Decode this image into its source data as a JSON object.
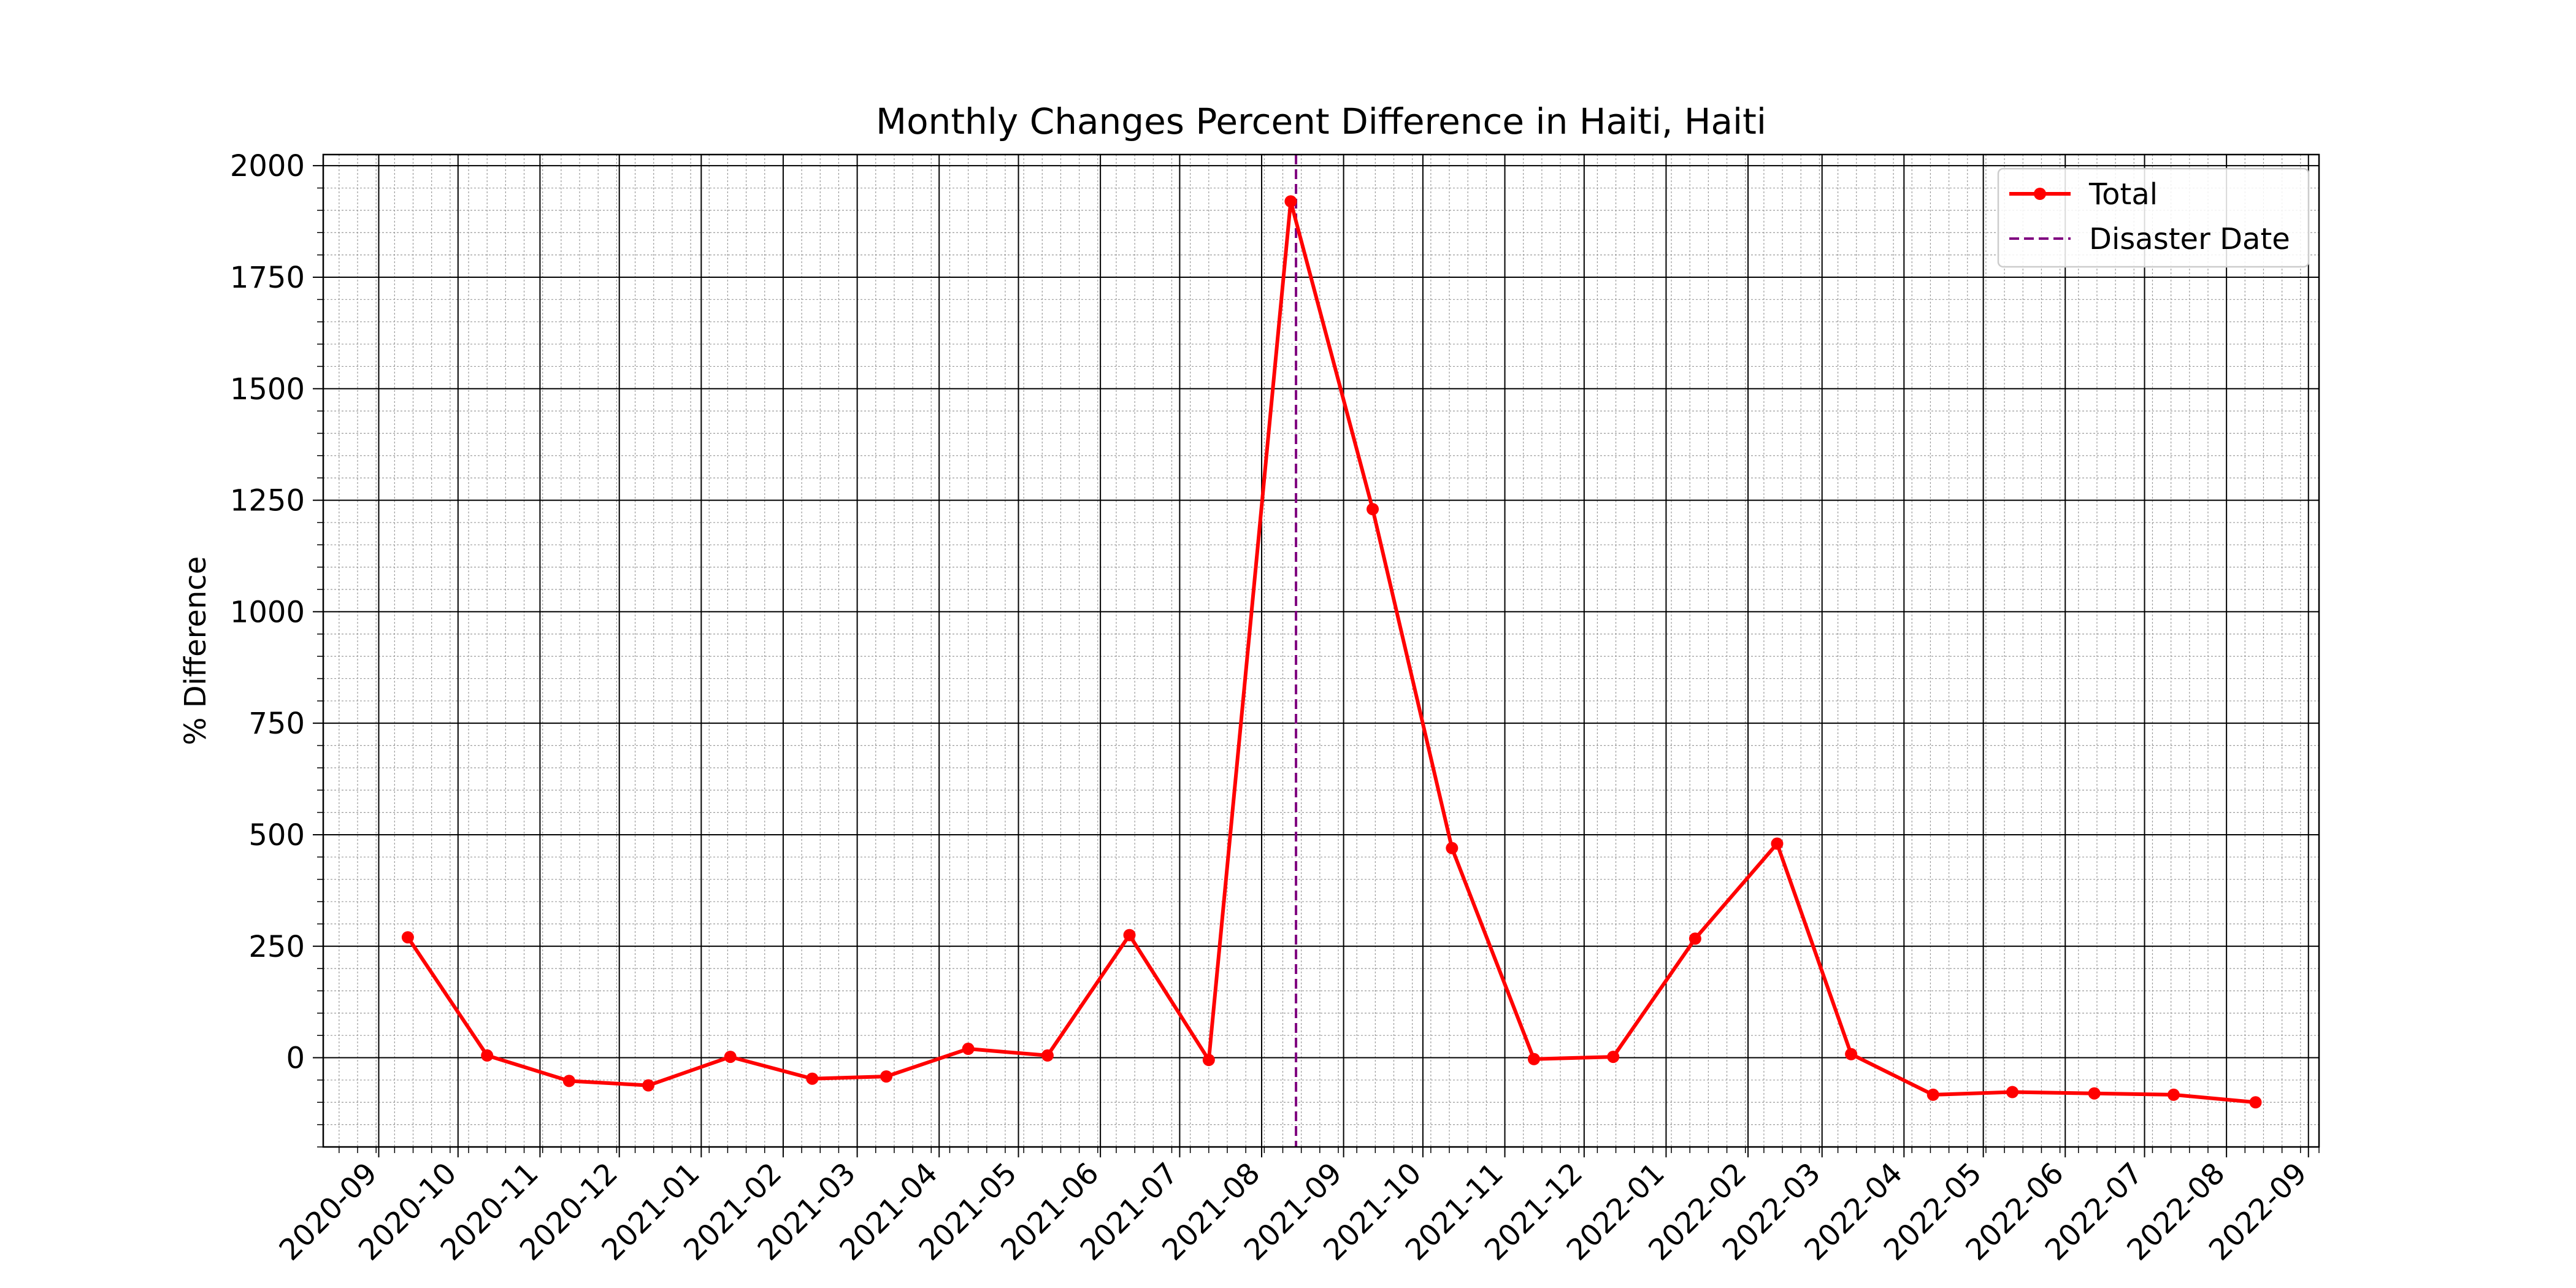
{
  "chart_data": {
    "type": "line",
    "title": "Monthly Changes Percent Difference in Haiti, Haiti",
    "xlabel": "",
    "ylabel": "% Difference",
    "x_ticks": [
      "2020-09",
      "2020-10",
      "2020-11",
      "2020-12",
      "2021-01",
      "2021-02",
      "2021-03",
      "2021-04",
      "2021-05",
      "2021-06",
      "2021-07",
      "2021-08",
      "2021-09",
      "2021-10",
      "2021-11",
      "2021-12",
      "2022-01",
      "2022-02",
      "2022-03",
      "2022-04",
      "2022-05",
      "2022-06",
      "2022-07",
      "2022-08",
      "2022-09"
    ],
    "y_ticks": [
      0,
      250,
      500,
      750,
      1000,
      1250,
      1500,
      1750,
      2000
    ],
    "xlim": [
      "2020-08-11",
      "2022-09-05"
    ],
    "ylim": [
      -200,
      2025
    ],
    "grid": true,
    "legend_position": "top-right",
    "series": [
      {
        "name": "Total",
        "color": "#ff0000",
        "marker": "circle",
        "x": [
          "2020-09-12",
          "2020-10-12",
          "2020-11-12",
          "2020-12-12",
          "2021-01-12",
          "2021-02-12",
          "2021-03-12",
          "2021-04-12",
          "2021-05-12",
          "2021-06-12",
          "2021-07-12",
          "2021-08-12",
          "2021-09-12",
          "2021-10-12",
          "2021-11-12",
          "2021-12-12",
          "2022-01-12",
          "2022-02-12",
          "2022-03-12",
          "2022-04-12",
          "2022-05-12",
          "2022-06-12",
          "2022-07-12",
          "2022-08-12"
        ],
        "y": [
          270,
          5,
          -52,
          -62,
          2,
          -47,
          -42,
          20,
          5,
          275,
          -5,
          1920,
          1230,
          470,
          -3,
          2,
          267,
          480,
          8,
          -83,
          -77,
          -80,
          -83,
          -100
        ]
      }
    ],
    "vlines": [
      {
        "name": "Disaster Date",
        "x": "2021-08-14",
        "color": "#800080",
        "style": "dashed"
      }
    ]
  }
}
